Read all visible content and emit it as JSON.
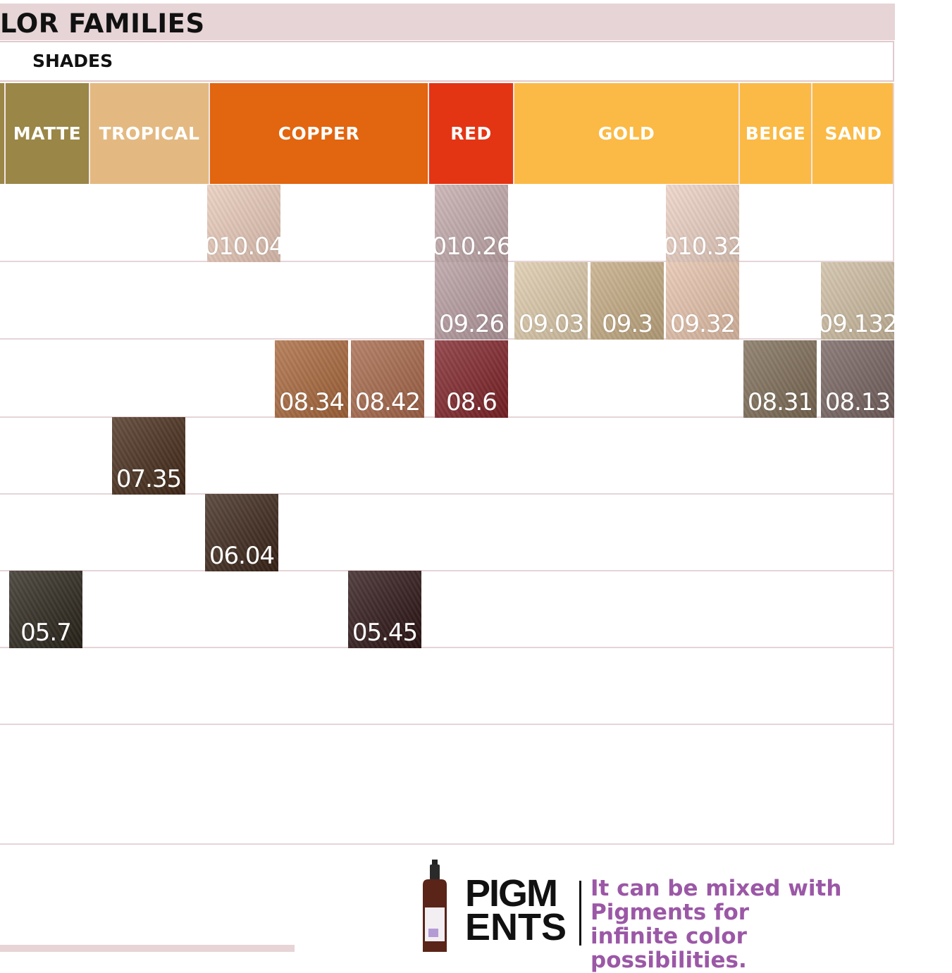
{
  "header": {
    "title": "LOR FAMILIES",
    "shades_label": "SHADES"
  },
  "families": [
    {
      "label": "",
      "color": "#9a8646"
    },
    {
      "label": "MATTE",
      "color": "#9a8646"
    },
    {
      "label": "TROPICAL",
      "color": "#e3b981"
    },
    {
      "label": "COPPER",
      "color": "#e2650f"
    },
    {
      "label": "RED",
      "color": "#e33514"
    },
    {
      "label": "GOLD",
      "color": "#fbba45"
    },
    {
      "label": "BEIGE",
      "color": "#fbba45"
    },
    {
      "label": "SAND",
      "color": "#fbba45"
    }
  ],
  "shades": [
    {
      "code": "010.04",
      "color": "#e8c9b8"
    },
    {
      "code": "010.26",
      "color": "#c3a9ab"
    },
    {
      "code": "010.32",
      "color": "#ecd0c2"
    },
    {
      "code": "09.26",
      "color": "#b69ba0"
    },
    {
      "code": "09.03",
      "color": "#dcc9a9"
    },
    {
      "code": "09.3",
      "color": "#c4aa82"
    },
    {
      "code": "09.32",
      "color": "#e6c2aa"
    },
    {
      "code": "09.132",
      "color": "#cdbca0"
    },
    {
      "code": "08.34",
      "color": "#a8663a"
    },
    {
      "code": "08.42",
      "color": "#a66648"
    },
    {
      "code": "08.6",
      "color": "#7e2227"
    },
    {
      "code": "08.31",
      "color": "#7d6b55"
    },
    {
      "code": "08.13",
      "color": "#75625f"
    },
    {
      "code": "07.35",
      "color": "#452a18"
    },
    {
      "code": "06.04",
      "color": "#3b2518"
    },
    {
      "code": "05.7",
      "color": "#2a241a"
    },
    {
      "code": "05.45",
      "color": "#2d1414"
    }
  ],
  "promo": {
    "logo_line1": "PIGM",
    "logo_line2": "ENTS",
    "tagline": "It can be mixed with Pigments for infinite color possibilities.",
    "accent_color": "#9b58a6"
  }
}
